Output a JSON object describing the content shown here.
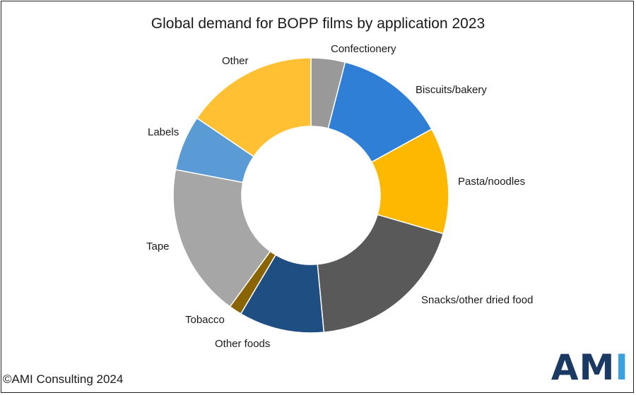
{
  "chart_data": {
    "type": "pie",
    "title": "Global demand for BOPP films by application 2023",
    "donut": true,
    "slices": [
      {
        "label": "Confectionery",
        "value": 4,
        "color": "#999999"
      },
      {
        "label": "Biscuits/bakery",
        "value": 13,
        "color": "#2f7fd6"
      },
      {
        "label": "Pasta/noodles",
        "value": 12.5,
        "color": "#ffb800"
      },
      {
        "label": "Snacks/other dried food",
        "value": 19,
        "color": "#595959"
      },
      {
        "label": "Other foods",
        "value": 10,
        "color": "#1f4e82"
      },
      {
        "label": "Tobacco",
        "value": 1.5,
        "color": "#8a6400"
      },
      {
        "label": "Tape",
        "value": 18,
        "color": "#a6a6a6"
      },
      {
        "label": "Labels",
        "value": 6.5,
        "color": "#5b9bd5"
      },
      {
        "label": "Other",
        "value": 15.5,
        "color": "#ffc133"
      }
    ]
  },
  "footer": {
    "copyright": "©AMI Consulting 2024",
    "logo_text": [
      "A",
      "M",
      "I"
    ],
    "logo_colors": [
      "#1b3a63",
      "#1b3a63",
      "#3aa0de"
    ]
  }
}
